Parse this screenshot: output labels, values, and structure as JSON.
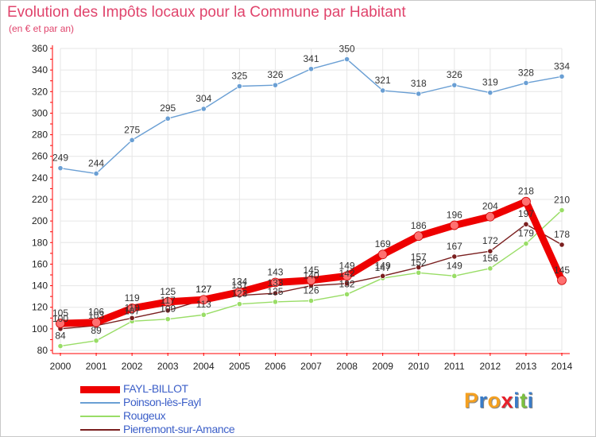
{
  "header": {
    "title": "Evolution des Impôts locaux pour la Commune par Habitant",
    "subtitle": "(en € et par an)"
  },
  "colors": {
    "title": "#e0446c",
    "axis": "#ff0000",
    "grid": "#e6e6e6",
    "legend_text": "#3c5fc8"
  },
  "logo": {
    "text": "Proxiti",
    "colors": [
      "#f4a020",
      "#3a7cc8",
      "#f4a020",
      "#e8202a",
      "#3a7cc8",
      "#7cc040",
      "#3a7cc8"
    ]
  },
  "chart_data": {
    "type": "line",
    "title": "Evolution des Impôts locaux pour la Commune par Habitant",
    "subtitle": "(en € et par an)",
    "x": [
      2000,
      2001,
      2002,
      2003,
      2004,
      2005,
      2006,
      2007,
      2008,
      2009,
      2010,
      2011,
      2012,
      2013,
      2014
    ],
    "ylim": [
      80,
      360
    ],
    "yticks": [
      80,
      100,
      120,
      140,
      160,
      180,
      200,
      220,
      240,
      260,
      280,
      300,
      320,
      340,
      360
    ],
    "grid": true,
    "legend_position": "bottom-left",
    "series": [
      {
        "name": "FAYL-BILLOT",
        "color": "#ee0000",
        "width": 9,
        "values": [
          105,
          106,
          119,
          125,
          127,
          134,
          143,
          145,
          149,
          169,
          186,
          196,
          204,
          218,
          145
        ]
      },
      {
        "name": "Poinson-lès-Fayl",
        "color": "#6a9fd4",
        "width": 1.4,
        "values": [
          249,
          244,
          275,
          295,
          304,
          325,
          326,
          341,
          350,
          321,
          318,
          326,
          319,
          328,
          334
        ]
      },
      {
        "name": "Rougeux",
        "color": "#99dd66",
        "width": 1.4,
        "values": [
          84,
          89,
          107,
          109,
          113,
          123,
          125,
          126,
          132,
          147,
          152,
          149,
          156,
          179,
          210
        ]
      },
      {
        "name": "Pierremont-sur-Amance",
        "color": "#7a1f1f",
        "width": 1.4,
        "values": [
          100,
          103,
          110,
          117,
          127,
          131,
          133,
          140,
          142,
          149,
          157,
          167,
          172,
          197,
          178
        ]
      }
    ]
  }
}
